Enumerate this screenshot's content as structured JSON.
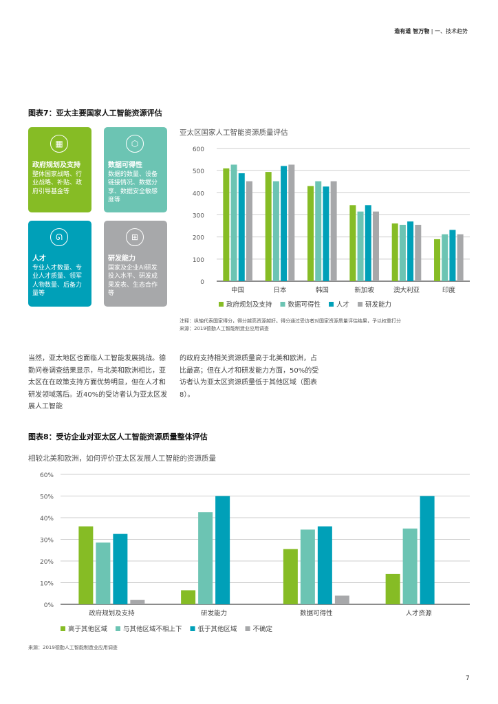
{
  "header": {
    "brand": "造有道 智万物",
    "separator": "|",
    "section": "一、技术趋势"
  },
  "figure7": {
    "title": "图表7：亚太主要国家人工智能资源评估",
    "cards": [
      {
        "icon": "government-building-icon",
        "title": "政府规划及支持",
        "text": "整体国家战略、行业战略、补贴、政府引导基金等",
        "color": "#86bc25"
      },
      {
        "icon": "data-cube-icon",
        "title": "数据可得性",
        "text": "数据的数量、设备链接情况、数据分享、数据安全敏感度等",
        "color": "#6cc4b3"
      },
      {
        "icon": "people-icon",
        "title": "人才",
        "text": "专业人才数量、专业人才质量、领军人物数量、后备力量等",
        "color": "#00a0b8"
      },
      {
        "icon": "org-chart-icon",
        "title": "研发能力",
        "text": "国家及企业AI研发投入水平、研发成果发表、生态合作等",
        "color": "#a7a8aa"
      }
    ],
    "note": "注释：纵轴代表国家得分，得分越高资源越好。得分通过受访者对国家资源质量评估结果，予以权重打分",
    "source": "来源：2019德勤人工智能制造业应用调查"
  },
  "body_text": {
    "col1": "当然，亚太地区也面临人工智能发展挑战。德勤问卷调查结果显示，与北美和欧洲相比，亚太区在在政策支持方面优势明显，但在人才和研发领域落后。近40%的受访者认为亚太区发展人工智能",
    "col2": "的政府支持相关资源质量高于北美和欧洲，占比最高；但在人才和研发能力方面，50%的受访者认为亚太区资源质量低于其他区域（图表8）。"
  },
  "figure8": {
    "title": "图表8：受访企业对亚太区人工智能资源质量整体评估",
    "source": "来源：2019德勤人工智能制造业应用调查"
  },
  "page_number": "7",
  "chart_data": [
    {
      "type": "bar",
      "title": "亚太区国家人工智能资源质量评估",
      "categories": [
        "中国",
        "日本",
        "韩国",
        "新加坡",
        "澳大利亚",
        "印度"
      ],
      "ylim": [
        0,
        600
      ],
      "yticks": [
        "0",
        "100",
        "200",
        "300",
        "400",
        "500",
        "600"
      ],
      "grid": true,
      "legend": "bottom",
      "series": [
        {
          "name": "政府规划及支持",
          "color": "#86bc25",
          "values": [
            510,
            494,
            430,
            344,
            261,
            190
          ]
        },
        {
          "name": "数据可得性",
          "color": "#6cc4b3",
          "values": [
            527,
            452,
            452,
            315,
            255,
            212
          ]
        },
        {
          "name": "人才",
          "color": "#00a0b8",
          "values": [
            488,
            521,
            428,
            344,
            270,
            232
          ]
        },
        {
          "name": "研发能力",
          "color": "#a7a8aa",
          "values": [
            452,
            527,
            452,
            315,
            255,
            212
          ]
        }
      ]
    },
    {
      "type": "bar",
      "title": "相较北美和欧洲，如何评价亚太区发展人工智能的资源质量",
      "categories": [
        "政府规划及支持",
        "研发能力",
        "数据可得性",
        "人才资源"
      ],
      "ylim": [
        0,
        60
      ],
      "yticks": [
        "0%",
        "10%",
        "20%",
        "30%",
        "40%",
        "50%",
        "60%"
      ],
      "grid": true,
      "legend": "bottom",
      "series": [
        {
          "name": "高于其他区域",
          "color": "#86bc25",
          "values": [
            36,
            6.5,
            25.5,
            14
          ]
        },
        {
          "name": "与其他区域不相上下",
          "color": "#6cc4b3",
          "values": [
            28.5,
            42.5,
            34.5,
            35
          ]
        },
        {
          "name": "低于其他区域",
          "color": "#00a0b8",
          "values": [
            32.5,
            50,
            36,
            50
          ]
        },
        {
          "name": "不确定",
          "color": "#a7a8aa",
          "values": [
            2,
            0,
            4,
            0
          ]
        }
      ]
    }
  ]
}
